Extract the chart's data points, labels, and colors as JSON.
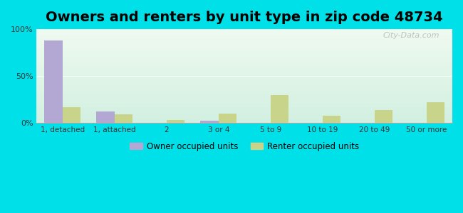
{
  "title": "Owners and renters by unit type in zip code 48734",
  "categories": [
    "1, detached",
    "1, attached",
    "2",
    "3 or 4",
    "5 to 9",
    "10 to 19",
    "20 to 49",
    "50 or more"
  ],
  "owner_values": [
    88,
    12,
    0,
    2,
    0,
    0,
    0,
    0
  ],
  "renter_values": [
    17,
    9,
    3,
    10,
    30,
    8,
    14,
    22
  ],
  "owner_color": "#b3a8d4",
  "renter_color": "#c8d48a",
  "outer_bg": "#00e0e8",
  "ylim": [
    0,
    100
  ],
  "yticks": [
    0,
    50,
    100
  ],
  "ytick_labels": [
    "0%",
    "50%",
    "100%"
  ],
  "title_fontsize": 14,
  "legend_labels": [
    "Owner occupied units",
    "Renter occupied units"
  ],
  "watermark": "City-Data.com",
  "bar_width": 0.35
}
